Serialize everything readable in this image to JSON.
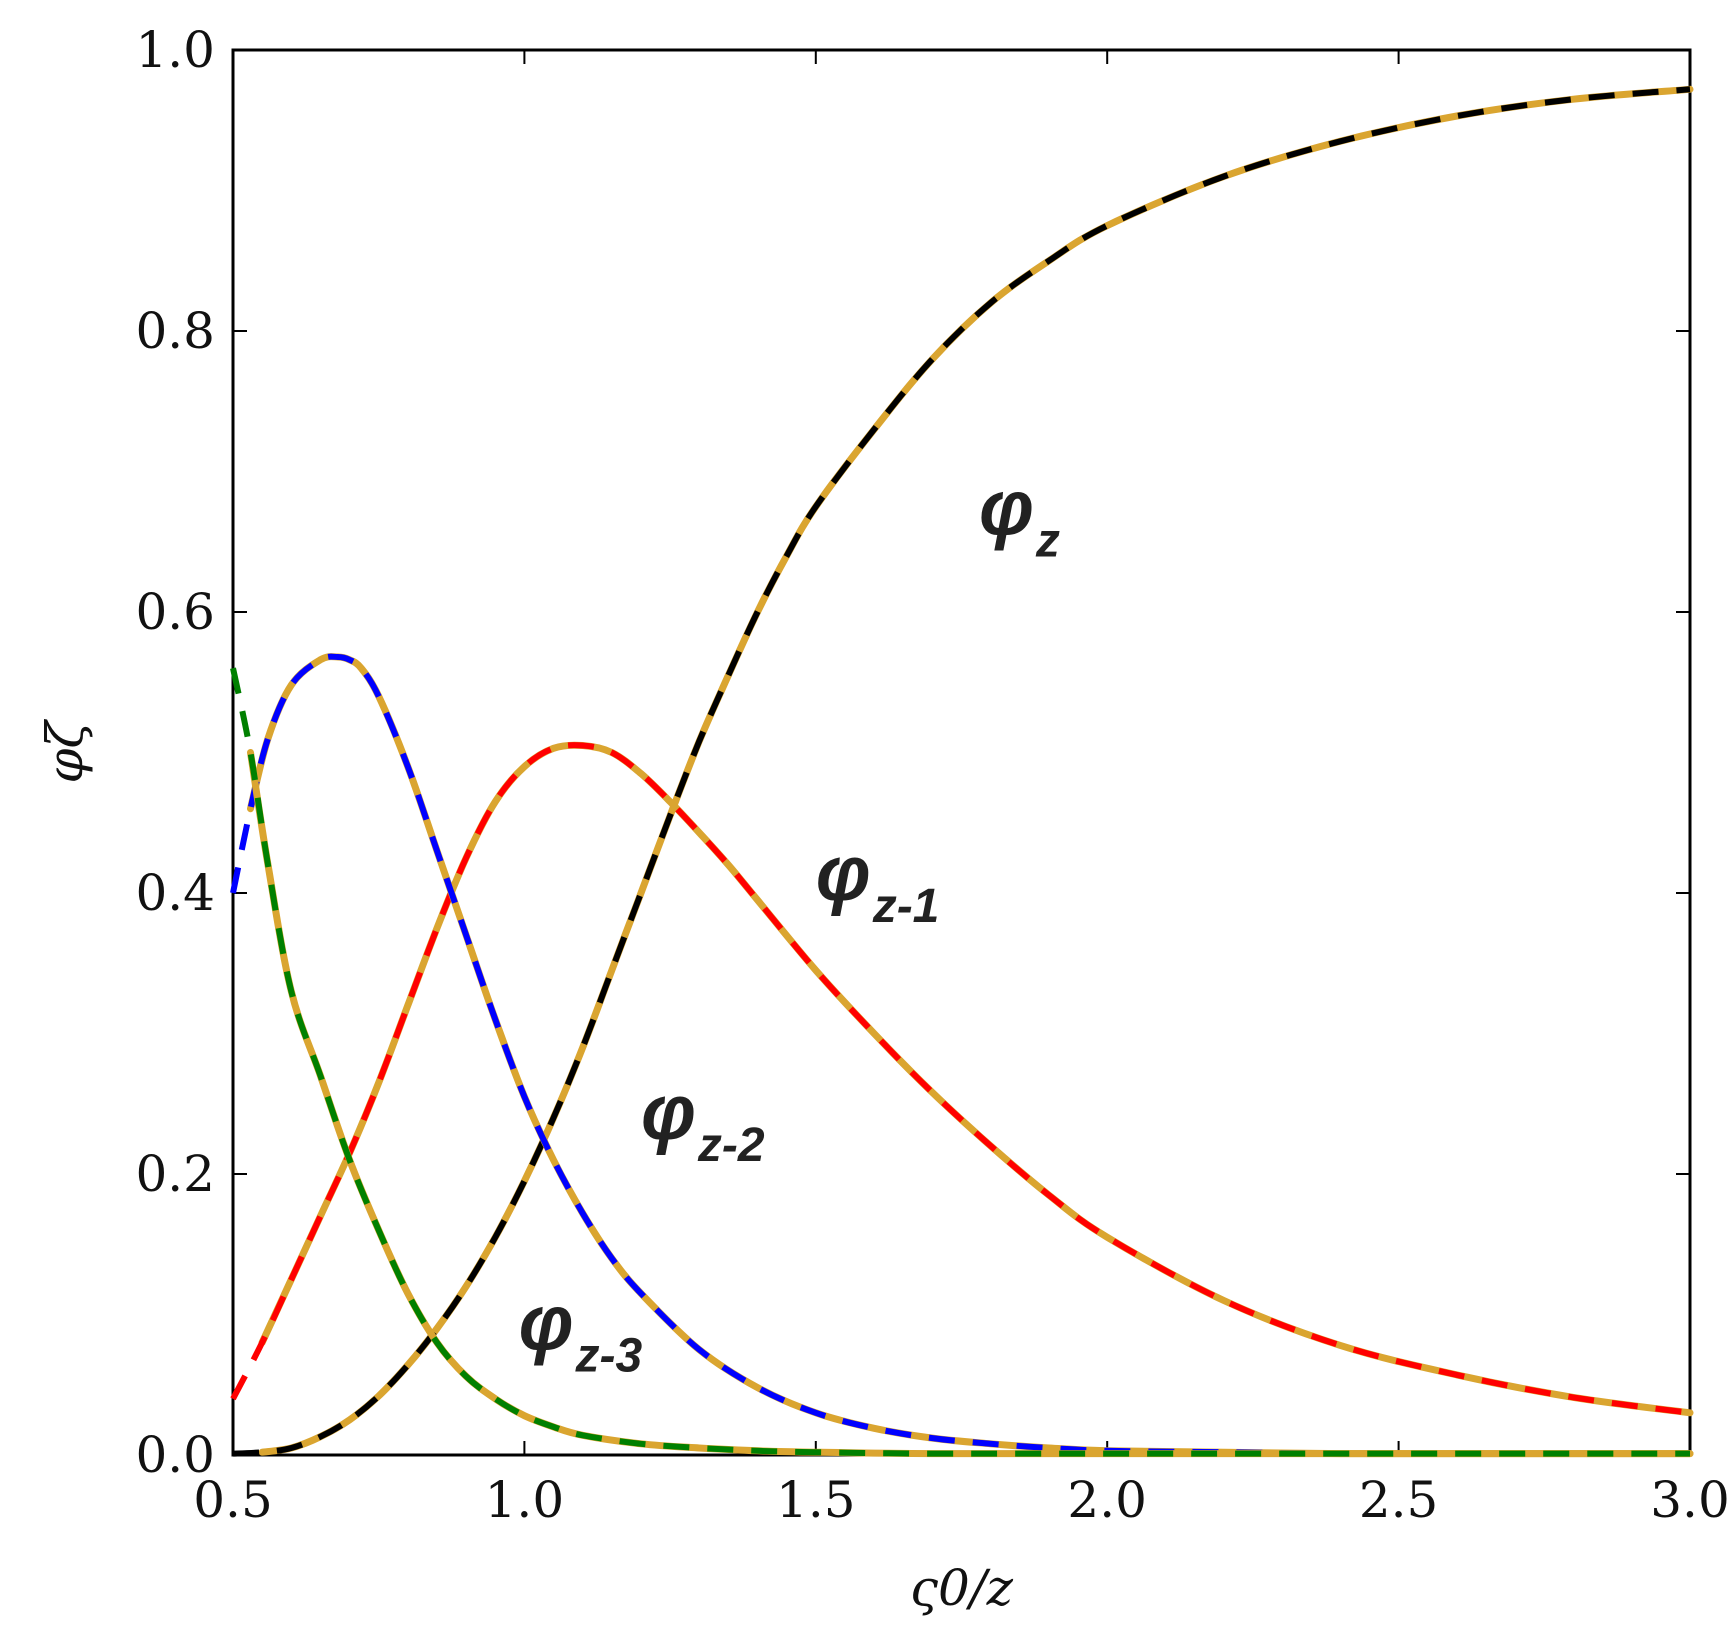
{
  "chart_data": {
    "type": "line",
    "title": "",
    "xlabel": "ς0/z",
    "ylabel": "φζ",
    "xlim": [
      0.5,
      3.0
    ],
    "ylim": [
      0.0,
      1.0
    ],
    "xticks": [
      "0.5",
      "1.0",
      "1.5",
      "2.0",
      "2.5",
      "3.0"
    ],
    "yticks": [
      "0.0",
      "0.2",
      "0.4",
      "0.6",
      "0.8",
      "1.0"
    ],
    "grid": false,
    "colors": {
      "solid": "#DAA530",
      "z": "#000000",
      "z-1": "#FF0000",
      "z-2": "#0000FF",
      "z-3": "#008000"
    },
    "series": [
      {
        "name": "φz",
        "label_main": "φ",
        "label_sub": "z",
        "color_key": "z",
        "x": [
          0.5,
          0.55,
          0.6,
          0.65,
          0.7,
          0.75,
          0.8,
          0.85,
          0.9,
          0.95,
          1.0,
          1.05,
          1.1,
          1.15,
          1.2,
          1.25,
          1.3,
          1.35,
          1.4,
          1.45,
          1.5,
          1.6,
          1.7,
          1.8,
          1.9,
          2.0,
          2.2,
          2.4,
          2.6,
          2.8,
          3.0
        ],
        "y": [
          0.001,
          0.002,
          0.005,
          0.013,
          0.025,
          0.042,
          0.064,
          0.09,
          0.12,
          0.155,
          0.195,
          0.24,
          0.29,
          0.345,
          0.4,
          0.455,
          0.508,
          0.555,
          0.6,
          0.64,
          0.675,
          0.73,
          0.78,
          0.82,
          0.85,
          0.875,
          0.91,
          0.935,
          0.953,
          0.965,
          0.972
        ]
      },
      {
        "name": "φz-1",
        "label_main": "φ",
        "label_sub": "z-1",
        "color_key": "z-1",
        "x": [
          0.5,
          0.55,
          0.6,
          0.65,
          0.7,
          0.75,
          0.8,
          0.85,
          0.9,
          0.95,
          1.0,
          1.05,
          1.1,
          1.15,
          1.2,
          1.25,
          1.3,
          1.35,
          1.4,
          1.5,
          1.6,
          1.7,
          1.8,
          1.9,
          2.0,
          2.2,
          2.4,
          2.6,
          2.8,
          3.0
        ],
        "y": [
          0.04,
          0.08,
          0.125,
          0.17,
          0.215,
          0.265,
          0.32,
          0.375,
          0.425,
          0.465,
          0.49,
          0.503,
          0.505,
          0.5,
          0.485,
          0.465,
          0.443,
          0.42,
          0.395,
          0.345,
          0.3,
          0.258,
          0.22,
          0.185,
          0.155,
          0.11,
          0.078,
          0.057,
          0.041,
          0.03
        ]
      },
      {
        "name": "φz-2",
        "label_main": "φ",
        "label_sub": "z-2",
        "color_key": "z-2",
        "x": [
          0.5,
          0.53,
          0.56,
          0.6,
          0.65,
          0.68,
          0.7,
          0.72,
          0.75,
          0.8,
          0.85,
          0.9,
          0.95,
          1.0,
          1.05,
          1.1,
          1.15,
          1.2,
          1.3,
          1.4,
          1.5,
          1.6,
          1.7,
          1.8,
          1.9,
          2.0,
          2.2,
          2.4,
          2.6,
          2.8,
          3.0
        ],
        "y": [
          0.4,
          0.46,
          0.51,
          0.548,
          0.566,
          0.568,
          0.566,
          0.56,
          0.54,
          0.49,
          0.43,
          0.37,
          0.31,
          0.255,
          0.21,
          0.172,
          0.14,
          0.115,
          0.075,
          0.048,
          0.03,
          0.019,
          0.012,
          0.008,
          0.005,
          0.003,
          0.002,
          0.001,
          0.001,
          0.001,
          0.001
        ]
      },
      {
        "name": "φz-3",
        "label_main": "φ",
        "label_sub": "z-3",
        "color_key": "z-3",
        "x": [
          0.5,
          0.53,
          0.56,
          0.6,
          0.65,
          0.7,
          0.75,
          0.8,
          0.85,
          0.9,
          0.95,
          1.0,
          1.05,
          1.1,
          1.2,
          1.3,
          1.4,
          1.5,
          1.7,
          2.0,
          2.5,
          3.0
        ],
        "y": [
          0.56,
          0.5,
          0.42,
          0.33,
          0.27,
          0.21,
          0.16,
          0.115,
          0.08,
          0.056,
          0.04,
          0.028,
          0.02,
          0.014,
          0.008,
          0.005,
          0.003,
          0.002,
          0.001,
          0.001,
          0.001,
          0.001
        ]
      }
    ],
    "labels": {
      "z": "φz",
      "z-1": "φz-1",
      "z-2": "φz-2",
      "z-3": "φz-3"
    }
  }
}
